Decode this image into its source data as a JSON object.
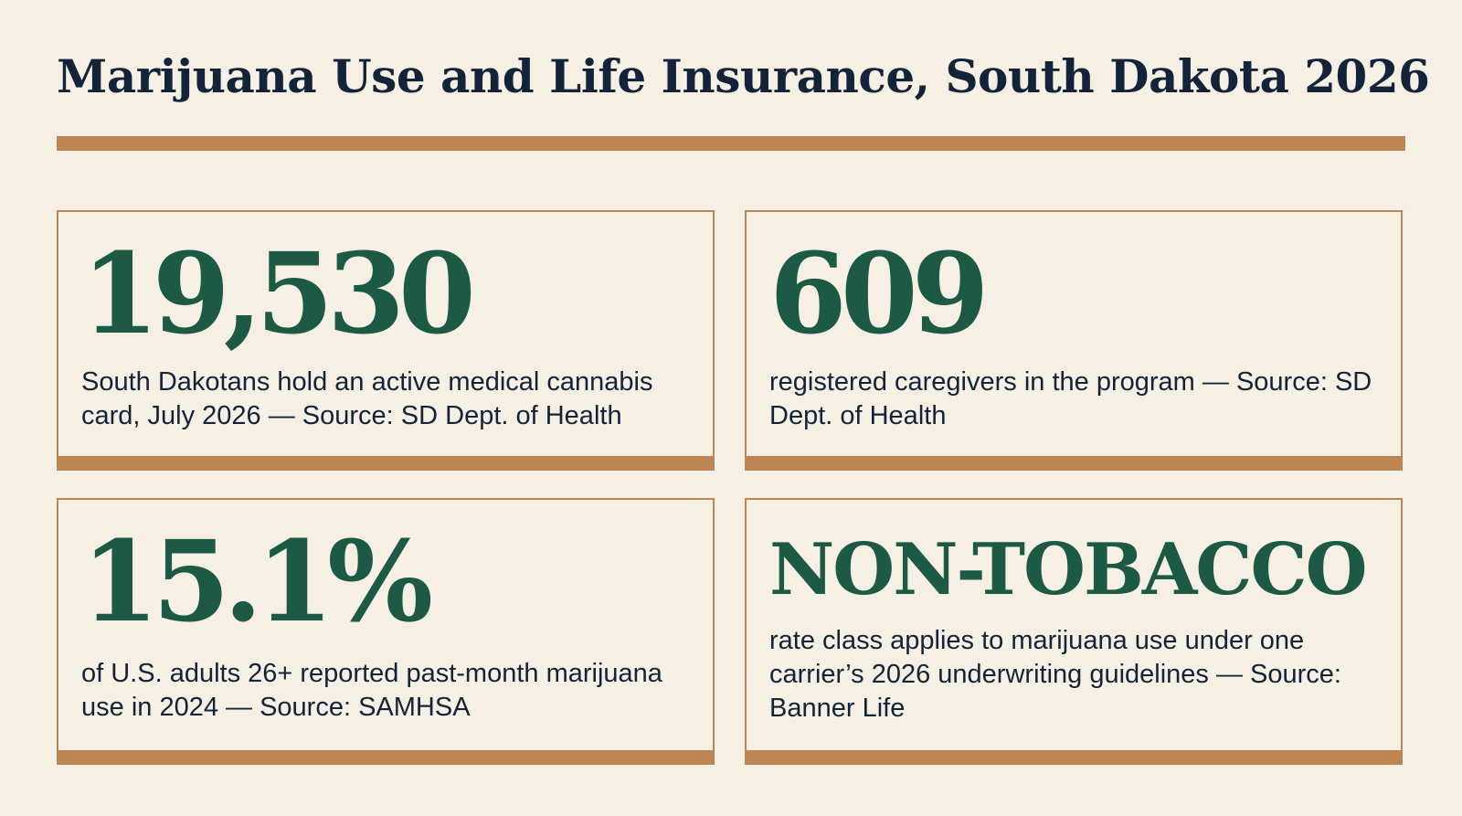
{
  "title": "Marijuana Use and Life Insurance, South Dakota 2026",
  "colors": {
    "background": "#f6f0e4",
    "accent": "#bd8554",
    "stat": "#1c5a45",
    "text": "#13233a"
  },
  "cards": [
    {
      "stat": "19,530",
      "description": "South Dakotans hold an active medical cannabis card, July 2026 — Source: SD Dept. of Health"
    },
    {
      "stat": "609",
      "description": "registered caregivers in the program — Source: SD Dept. of Health"
    },
    {
      "stat": "15.1%",
      "description": "of U.S. adults 26+ reported past-month marijuana use in 2024 — Source: SAMHSA"
    },
    {
      "stat": "NON-TOBACCO",
      "description": "rate class applies to marijuana use under one carrier’s 2026 underwriting guidelines — Source: Banner Life"
    }
  ]
}
